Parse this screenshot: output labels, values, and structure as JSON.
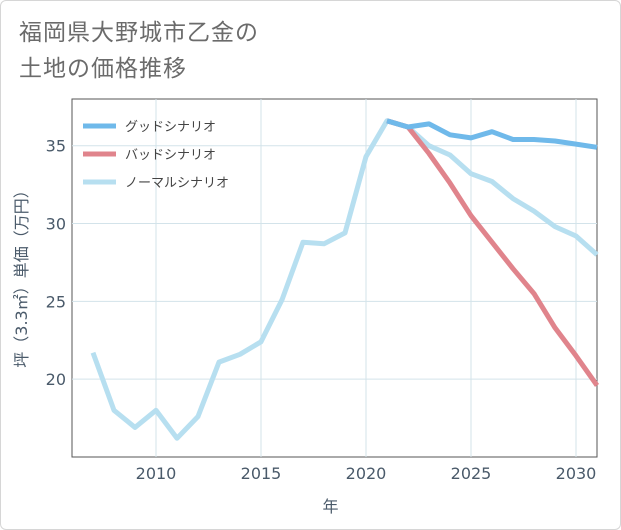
{
  "title_lines": [
    "福岡県大野城市乙金の",
    "土地の価格推移"
  ],
  "colors": {
    "good": "#6fb9ea",
    "bad": "#e0848c",
    "normal": "#b7dff0",
    "grid": "#d3e3ea",
    "axis_text": "#4a5a6a"
  },
  "chart_data": {
    "type": "line",
    "title": "福岡県大野城市乙金の土地の価格推移",
    "xlabel": "年",
    "ylabel": "坪（3.3㎡）単価（万円）",
    "xlim": [
      2006,
      2031
    ],
    "ylim": [
      15,
      38
    ],
    "x_ticks": [
      2010,
      2015,
      2020,
      2025,
      2030
    ],
    "y_ticks": [
      20,
      25,
      30,
      35
    ],
    "grid": true,
    "legend_position": "top-left",
    "series": [
      {
        "name": "グッドシナリオ",
        "color_key": "good",
        "x": [
          2021,
          2022,
          2023,
          2024,
          2025,
          2026,
          2027,
          2028,
          2029,
          2030,
          2031
        ],
        "y": [
          36.6,
          36.2,
          36.4,
          35.7,
          35.5,
          35.9,
          35.4,
          35.4,
          35.3,
          35.1,
          34.9
        ]
      },
      {
        "name": "バッドシナリオ",
        "color_key": "bad",
        "x": [
          2021,
          2022,
          2023,
          2024,
          2025,
          2026,
          2027,
          2028,
          2029,
          2030,
          2031
        ],
        "y": [
          36.6,
          36.2,
          34.5,
          32.6,
          30.5,
          28.8,
          27.1,
          25.5,
          23.3,
          21.5,
          19.6
        ]
      },
      {
        "name": "ノーマルシナリオ",
        "color_key": "normal",
        "x": [
          2007,
          2008,
          2009,
          2010,
          2011,
          2012,
          2013,
          2014,
          2015,
          2016,
          2017,
          2018,
          2019,
          2020,
          2021,
          2022,
          2023,
          2024,
          2025,
          2026,
          2027,
          2028,
          2029,
          2030,
          2031
        ],
        "y": [
          21.7,
          18.0,
          16.9,
          18.0,
          16.2,
          17.6,
          21.1,
          21.6,
          22.4,
          25.1,
          28.8,
          28.7,
          29.4,
          34.3,
          36.6,
          36.2,
          35.0,
          34.4,
          33.2,
          32.7,
          31.6,
          30.8,
          29.8,
          29.2,
          28.0
        ]
      }
    ]
  }
}
